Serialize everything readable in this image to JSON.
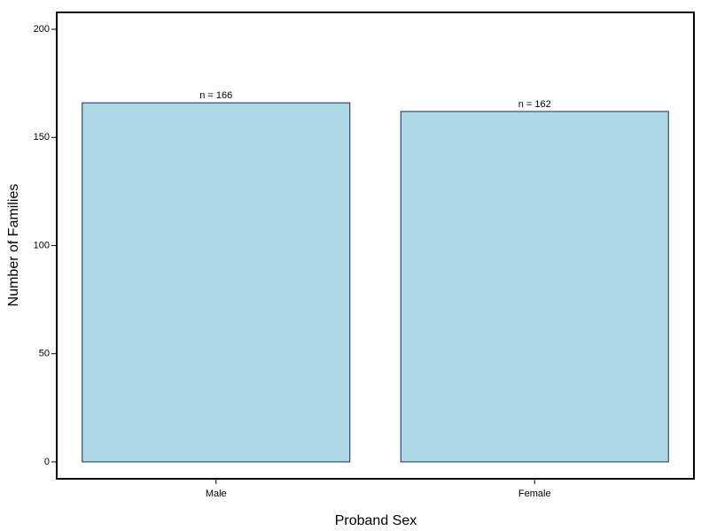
{
  "chart_data": {
    "type": "bar",
    "x_label": "Proband Sex",
    "y_label": "Number of Families",
    "categories": [
      "Male",
      "Female"
    ],
    "values": [
      166,
      162
    ],
    "value_labels": [
      "n = 166",
      "n = 162"
    ],
    "color": "#add8e6",
    "edge_color": "#1a2a5a",
    "ylim": [
      -7.8,
      207.8
    ],
    "yticks": [
      0,
      50,
      100,
      150,
      200
    ],
    "grid": false
  }
}
